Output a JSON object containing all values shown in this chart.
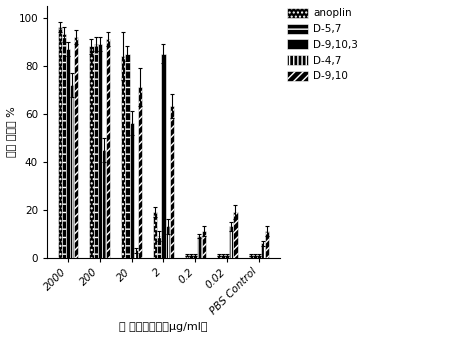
{
  "categories": [
    "2000",
    "200",
    "20",
    "2",
    "0.2",
    "0.02",
    "PBS Control"
  ],
  "series": [
    {
      "label": "anoplin",
      "values": [
        96,
        88,
        84,
        19,
        1,
        1,
        1
      ],
      "errors": [
        2,
        3,
        10,
        2,
        0.5,
        0.3,
        0.3
      ],
      "hatch": "...."
    },
    {
      "label": "D-5,7",
      "values": [
        93,
        89,
        85,
        9,
        1,
        1,
        1
      ],
      "errors": [
        3,
        3,
        3,
        2,
        0.3,
        0.3,
        0.3
      ],
      "hatch": "..--"
    },
    {
      "label": "D-9,10,3",
      "values": [
        87,
        89,
        56,
        85,
        1,
        1,
        1
      ],
      "errors": [
        3,
        3,
        5,
        4,
        0.3,
        0.3,
        0.3
      ],
      "hatch": "=="
    },
    {
      "label": "D-4,7",
      "values": [
        72,
        45,
        3,
        13,
        9,
        13,
        6
      ],
      "errors": [
        5,
        5,
        1,
        3,
        1,
        2,
        1
      ],
      "hatch": "|||"
    },
    {
      "label": "D-9,10",
      "values": [
        92,
        91,
        71,
        63,
        11,
        19,
        11
      ],
      "errors": [
        3,
        3,
        8,
        5,
        2,
        3,
        2
      ],
      "hatch": "///"
    }
  ],
  "ylabel": "细胞 存活率 %",
  "xlabel": "麼 蛋白酶浓度（μg/ml）",
  "ylim": [
    0,
    105
  ],
  "yticks": [
    0,
    20,
    40,
    60,
    80,
    100
  ],
  "bar_color": "#1a1a1a",
  "bar_width": 0.13,
  "background_color": "#ffffff",
  "label_fontsize": 8,
  "tick_fontsize": 7.5,
  "legend_fontsize": 7.5
}
